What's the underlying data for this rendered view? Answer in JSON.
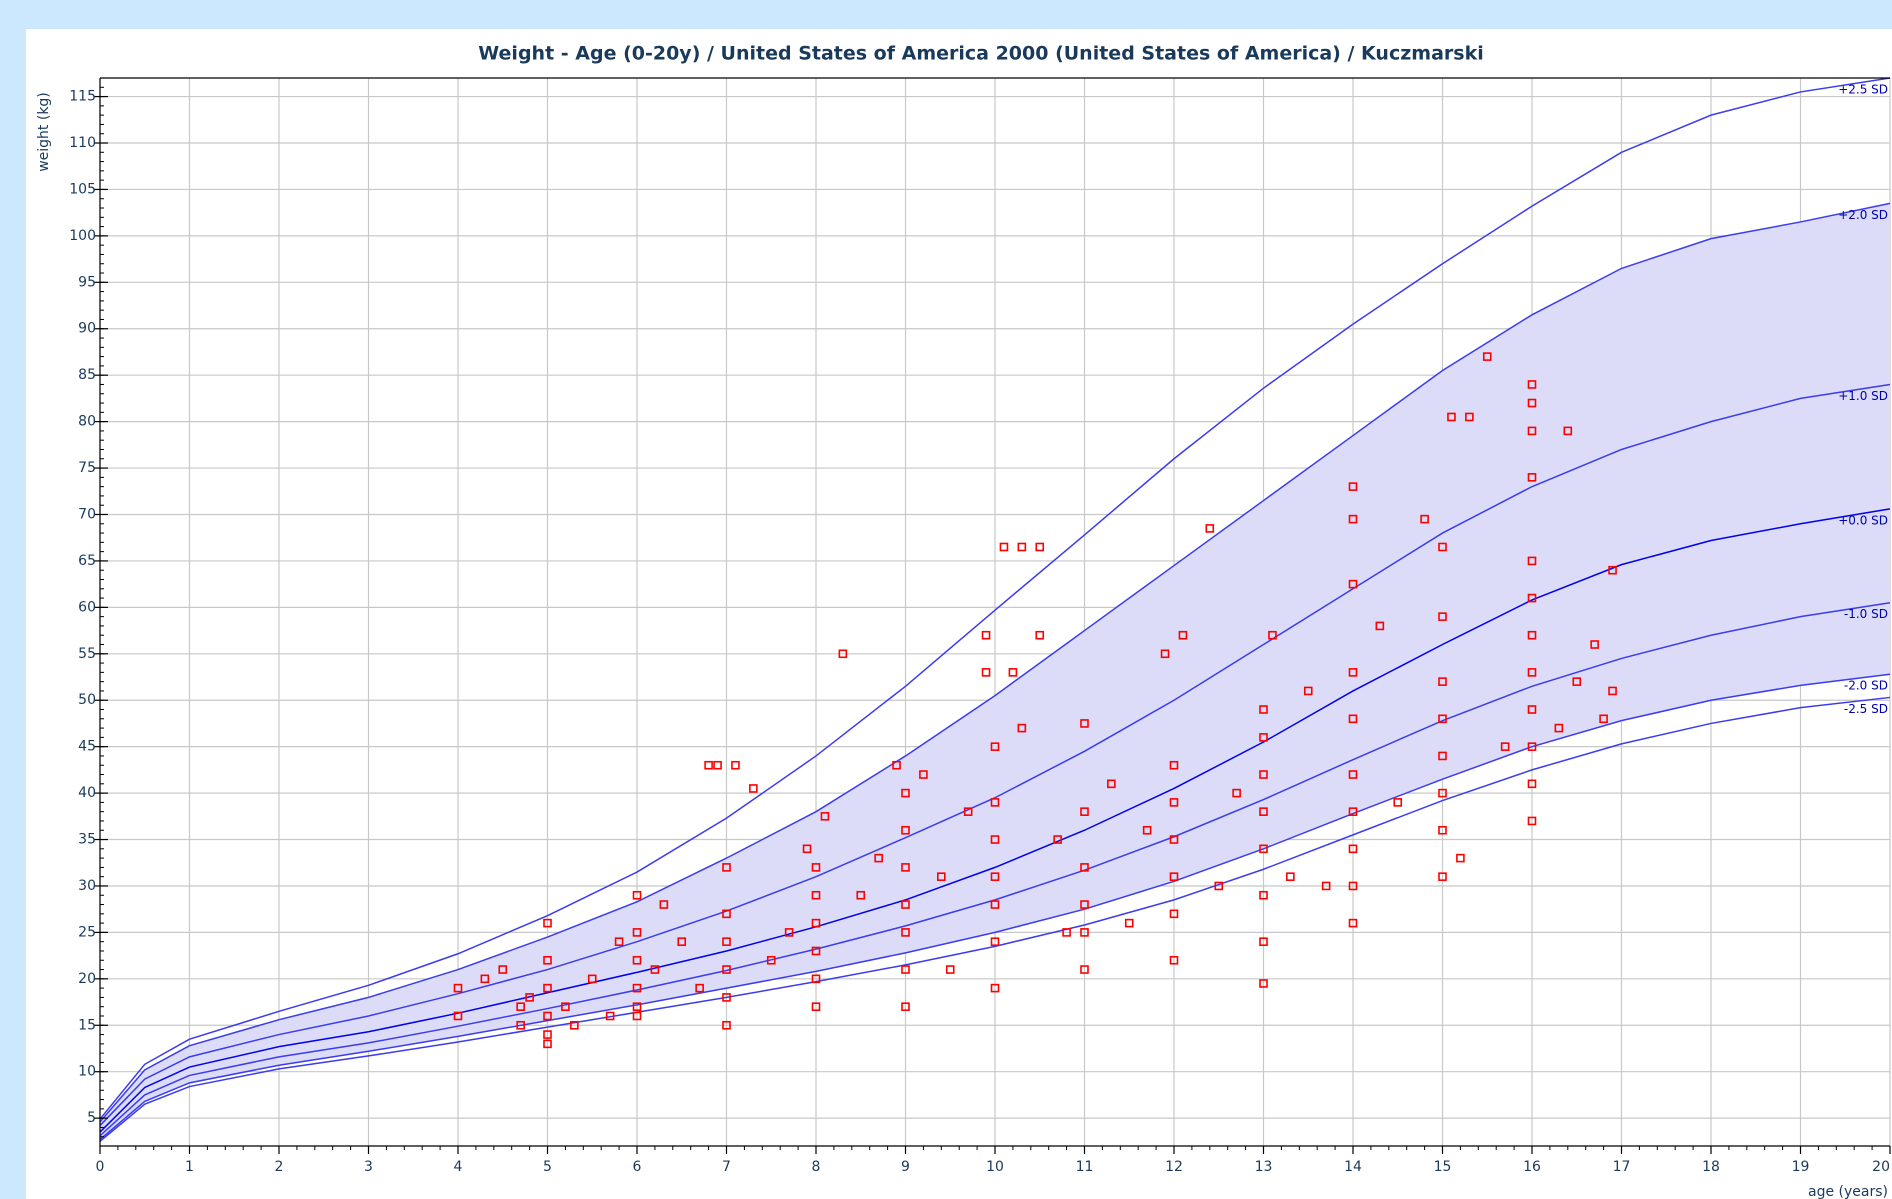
{
  "chart_data": {
    "type": "growth",
    "title": "Weight - Age (0-20y) / United States of America 2000 (United States of America) / Kuczmarski",
    "x_label": "age (years)",
    "y_label": "weight (kg)",
    "xlim": [
      0,
      20
    ],
    "ylim": [
      2,
      117
    ],
    "xticks": [
      0,
      1,
      2,
      3,
      4,
      5,
      6,
      7,
      8,
      9,
      10,
      11,
      12,
      13,
      14,
      15,
      16,
      17,
      18,
      19,
      20
    ],
    "yticks": [
      5,
      10,
      15,
      20,
      25,
      30,
      35,
      40,
      45,
      50,
      55,
      60,
      65,
      70,
      75,
      80,
      85,
      90,
      95,
      100,
      105,
      110,
      115
    ],
    "grid": true,
    "x": [
      0,
      0.5,
      1,
      2,
      3,
      4,
      5,
      6,
      7,
      8,
      9,
      10,
      11,
      12,
      13,
      14,
      15,
      16,
      17,
      18,
      19,
      20
    ],
    "series": [
      {
        "name": "+2.5 SD",
        "color": "#3b3bf0",
        "values": [
          4.9,
          10.8,
          13.5,
          16.5,
          19.3,
          22.7,
          26.8,
          31.5,
          37.3,
          44,
          51.5,
          59.7,
          67.8,
          76,
          83.6,
          90.5,
          97,
          103.2,
          109,
          113,
          115.5,
          117
        ]
      },
      {
        "name": "+2.0 SD",
        "color": "#3b3bf0",
        "values": [
          4.6,
          10.2,
          12.8,
          15.6,
          18,
          21,
          24.5,
          28.3,
          33,
          38,
          44,
          50.5,
          57.5,
          64.5,
          71.5,
          78.5,
          85.5,
          91.5,
          96.5,
          99.7,
          101.5,
          103.5
        ]
      },
      {
        "name": "+1.0 SD",
        "color": "#3b3bf0",
        "values": [
          4.2,
          9.2,
          11.6,
          14,
          16,
          18.4,
          21,
          24,
          27.3,
          31,
          35.2,
          39.5,
          44.5,
          50,
          56,
          62,
          68,
          73,
          77,
          80,
          82.5,
          84
        ]
      },
      {
        "name": "+0.0 SD",
        "color": "#0000ee",
        "values": [
          3.5,
          8.3,
          10.5,
          12.7,
          14.3,
          16.3,
          18.5,
          20.7,
          23,
          25.6,
          28.5,
          32,
          36,
          40.5,
          45.5,
          51,
          56,
          60.8,
          64.6,
          67.2,
          69,
          70.6
        ]
      },
      {
        "name": "-1.0 SD",
        "color": "#3b3bf0",
        "values": [
          3.1,
          7.5,
          9.6,
          11.6,
          13.1,
          14.9,
          16.8,
          18.8,
          20.9,
          23.2,
          25.7,
          28.5,
          31.7,
          35.3,
          39.3,
          43.6,
          47.8,
          51.5,
          54.5,
          57,
          59,
          60.5
        ]
      },
      {
        "name": "-2.0 SD",
        "color": "#3b3bf0",
        "values": [
          2.7,
          6.8,
          8.8,
          10.7,
          12.2,
          13.8,
          15.5,
          17.2,
          19,
          20.8,
          22.8,
          25,
          27.5,
          30.5,
          34,
          37.8,
          41.5,
          45,
          47.8,
          50,
          51.6,
          52.8
        ]
      },
      {
        "name": "-2.5 SD",
        "color": "#3b3bf0",
        "values": [
          2.5,
          6.5,
          8.4,
          10.3,
          11.7,
          13.2,
          14.8,
          16.4,
          18,
          19.7,
          21.5,
          23.5,
          25.8,
          28.5,
          31.8,
          35.5,
          39.2,
          42.5,
          45.3,
          47.5,
          49.2,
          50.3
        ]
      }
    ],
    "points": {
      "color": "#ff0000",
      "x": [
        4,
        4,
        4.3,
        4.5,
        4.7,
        4.7,
        4.8,
        5,
        5,
        5,
        5,
        5,
        5,
        5.2,
        5.3,
        5.5,
        5.7,
        5.8,
        6,
        6,
        6,
        6,
        6,
        6,
        6.2,
        6.3,
        6.5,
        6.7,
        6.8,
        6.9,
        7,
        7,
        7,
        7,
        7,
        7,
        7.1,
        7.3,
        7.5,
        7.7,
        7.9,
        8,
        8,
        8,
        8,
        8,
        8,
        8.1,
        8.3,
        8.5,
        8.7,
        8.9,
        9,
        9,
        9,
        9,
        9,
        9,
        9,
        9.2,
        9.4,
        9.5,
        9.7,
        9.9,
        9.9,
        10,
        10,
        10,
        10,
        10,
        10,
        10,
        10.1,
        10.3,
        10.5,
        10.3,
        10.5,
        10.2,
        10.7,
        10.8,
        11,
        11,
        11,
        11,
        11,
        11,
        11.3,
        11.5,
        11.7,
        12,
        12,
        12,
        12,
        12,
        12,
        11.9,
        12.1,
        12.4,
        12.5,
        12.7,
        13,
        13,
        13,
        13,
        13,
        13,
        13,
        13,
        13.1,
        13.3,
        13.5,
        13.7,
        14,
        14,
        14,
        14,
        14,
        14,
        14,
        14,
        14,
        14,
        14.3,
        14.5,
        14.8,
        15,
        15,
        15,
        15,
        15,
        15,
        15,
        15,
        15.1,
        15.3,
        15.5,
        15.2,
        15.7,
        16,
        16,
        16,
        16,
        16,
        16,
        16,
        16,
        16,
        16,
        16,
        16,
        16.4,
        16.3,
        16.5,
        16.7,
        16.8,
        16.9,
        16.9
      ],
      "y": [
        19,
        16,
        20,
        21,
        17,
        15,
        18,
        14,
        16,
        19,
        22,
        26,
        13,
        17,
        15,
        20,
        16,
        24,
        16,
        19,
        22,
        25,
        29,
        17,
        21,
        28,
        24,
        19,
        43,
        43,
        15,
        18,
        21,
        24,
        27,
        32,
        43,
        40.5,
        22,
        25,
        34,
        17,
        20,
        23,
        26,
        29,
        32,
        37.5,
        55,
        29,
        33,
        43,
        17,
        21,
        25,
        28,
        32,
        36,
        40,
        42,
        31,
        21,
        38,
        57,
        53,
        19,
        24,
        28,
        31,
        35,
        39,
        45,
        66.5,
        66.5,
        66.5,
        47,
        57,
        53,
        35,
        25,
        21,
        25,
        28,
        32,
        38,
        47.5,
        41,
        26,
        36,
        22,
        27,
        31,
        35,
        39,
        43,
        55,
        57,
        68.5,
        30,
        40,
        19.5,
        24,
        29,
        34,
        38,
        42,
        46,
        49,
        57,
        31,
        51,
        30,
        26,
        30,
        34,
        38,
        42,
        48,
        53,
        62.5,
        69.5,
        73,
        58,
        39,
        69.5,
        31,
        36,
        40,
        44,
        48,
        52,
        59,
        66.5,
        80.5,
        80.5,
        87,
        33,
        45,
        37,
        41,
        45,
        49,
        53,
        57,
        61,
        65,
        74,
        79,
        82,
        84,
        79,
        47,
        52,
        56,
        48,
        64,
        51
      ]
    }
  }
}
